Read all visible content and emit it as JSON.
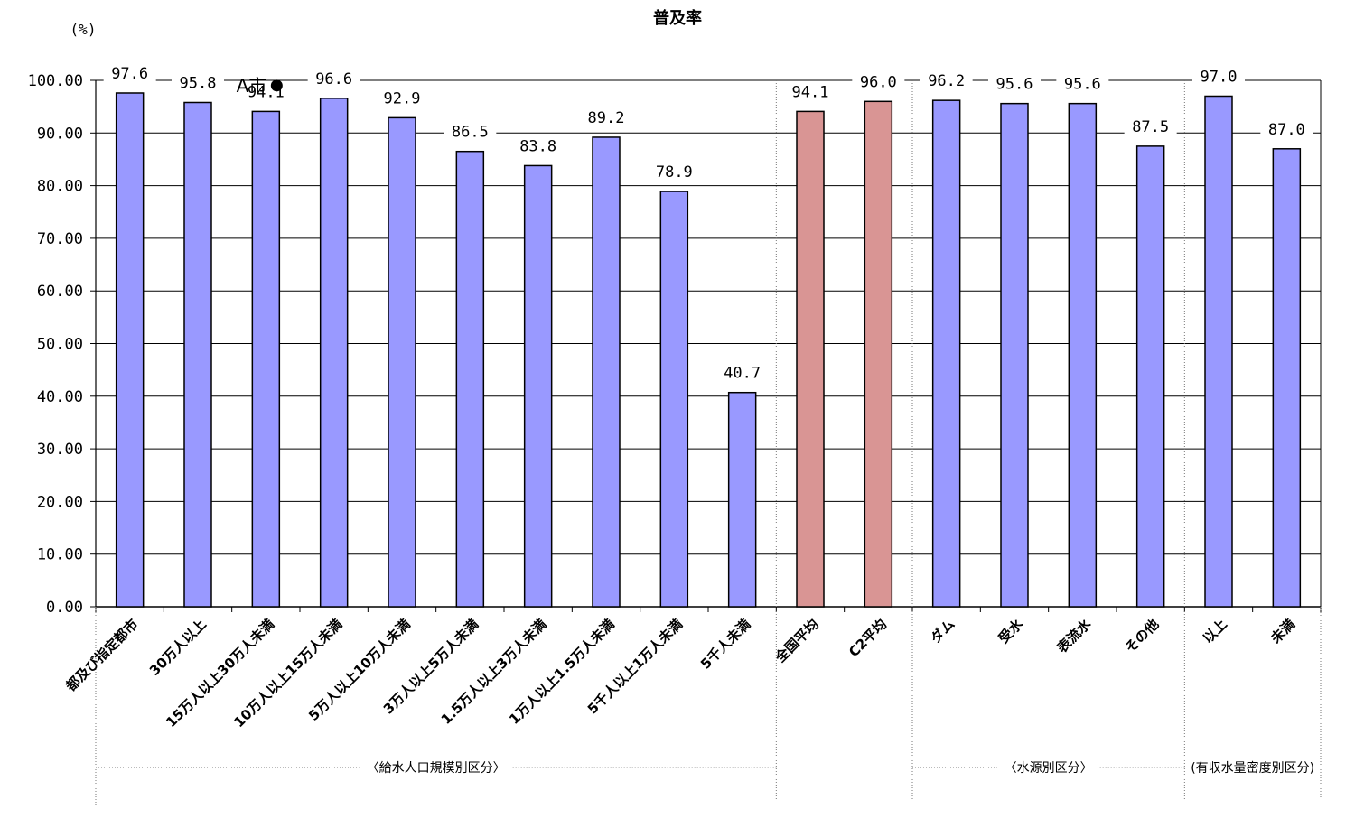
{
  "chart_data": {
    "type": "bar",
    "title": "普及率",
    "ylabel": "(%)",
    "xlabel": "",
    "ylim": [
      0,
      100
    ],
    "yticks": [
      "0.00",
      "10.00",
      "20.00",
      "30.00",
      "40.00",
      "50.00",
      "60.00",
      "70.00",
      "80.00",
      "90.00",
      "100.00"
    ],
    "grid": true,
    "categories": [
      "都及び指定都市",
      "30万人以上",
      "15万人以上30万人未満",
      "10万人以上15万人未満",
      "5万人以上10万人未満",
      "3万人以上5万人未満",
      "1.5万人以上3万人未満",
      "1万人以上1.5万人未満",
      "5千人以上1万人未満",
      "5千人未満",
      "全国平均",
      "C2平均",
      "ダム",
      "受水",
      "表流水",
      "その他",
      "以上",
      "未満"
    ],
    "values": [
      97.6,
      95.8,
      94.1,
      96.6,
      92.9,
      86.5,
      83.8,
      89.2,
      78.9,
      40.7,
      94.1,
      96.0,
      96.2,
      95.6,
      95.6,
      87.5,
      97.0,
      87.0
    ],
    "value_labels": [
      "97.6",
      "95.8",
      "94.1",
      "96.6",
      "92.9",
      "86.5",
      "83.8",
      "89.2",
      "78.9",
      "40.7",
      "94.1",
      "96.0",
      "96.2",
      "95.6",
      "95.6",
      "87.5",
      "97.0",
      "87.0"
    ],
    "bar_colors": [
      "#9999ff",
      "#9999ff",
      "#9999ff",
      "#9999ff",
      "#9999ff",
      "#9999ff",
      "#9999ff",
      "#9999ff",
      "#9999ff",
      "#9999ff",
      "#d99594",
      "#d99594",
      "#9999ff",
      "#9999ff",
      "#9999ff",
      "#9999ff",
      "#9999ff",
      "#9999ff"
    ],
    "groups": [
      {
        "label": "〈給水人口規模別区分〉",
        "start": 0,
        "end": 9
      },
      {
        "label": "〈水源別区分〉",
        "start": 12,
        "end": 15
      },
      {
        "label": "(有収水量密度別区分)",
        "start": 16,
        "end": 17
      }
    ],
    "marker": {
      "label": "A市",
      "category_index": 2,
      "value": 99.0
    }
  },
  "colors": {
    "primary_bar": "#9999ff",
    "average_bar": "#d99594",
    "grid": "#000000"
  }
}
